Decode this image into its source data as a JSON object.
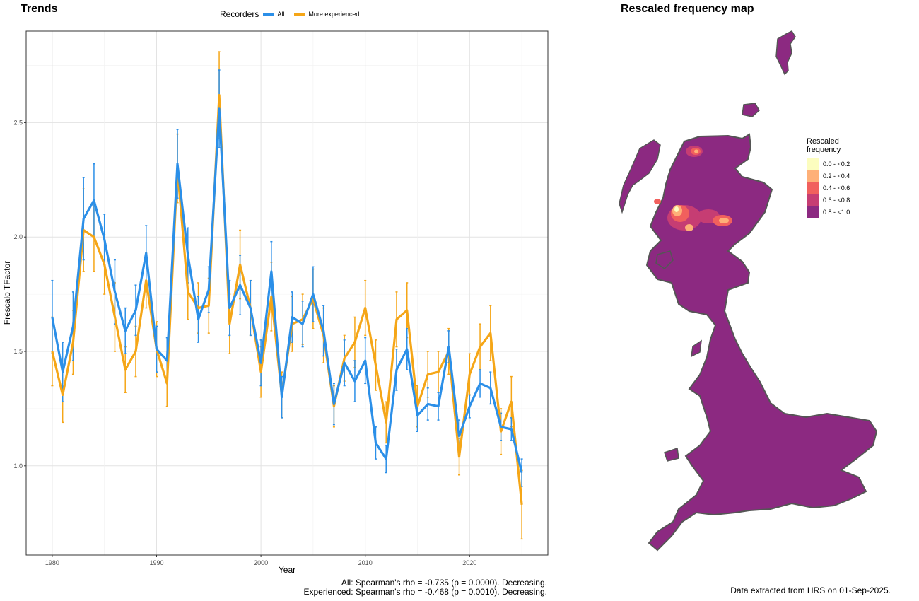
{
  "left_panel": {
    "title": "Trends",
    "legend_title": "Recorders",
    "footnote_lines": [
      "All: Spearman's rho = -0.735 (p = 0.0000). Decreasing.",
      "Experienced: Spearman's rho = -0.468 (p = 0.0010). Decreasing."
    ]
  },
  "right_panel": {
    "title": "Rescaled frequency map",
    "legend_title_lines": [
      "Rescaled",
      "frequency"
    ],
    "legend_items": [
      {
        "label": "0.0 - <0.2",
        "color": "#fcfdbf"
      },
      {
        "label": "0.2 - <0.4",
        "color": "#feb078"
      },
      {
        "label": "0.4 - <0.6",
        "color": "#f1605d"
      },
      {
        "label": "0.6 - <0.8",
        "color": "#c63d73"
      },
      {
        "label": "0.8 - <1.0",
        "color": "#8c2981"
      }
    ],
    "footnote": "Data extracted from HRS on 01-Sep-2025."
  },
  "chart_data": {
    "type": "line",
    "xlabel": "Year",
    "ylabel": "Frescalo TFactor",
    "xlim": [
      1977.5,
      2027.5
    ],
    "ylim": [
      0.61,
      2.9
    ],
    "xticks": [
      1980,
      1990,
      2000,
      2010,
      2020
    ],
    "yticks": [
      1.0,
      1.5,
      2.0,
      2.5
    ],
    "grid": true,
    "legend_position": "top",
    "x": [
      1980,
      1981,
      1982,
      1983,
      1984,
      1985,
      1986,
      1987,
      1988,
      1989,
      1990,
      1991,
      1992,
      1993,
      1994,
      1995,
      1996,
      1997,
      1998,
      1999,
      2000,
      2001,
      2002,
      2003,
      2004,
      2005,
      2006,
      2007,
      2008,
      2009,
      2010,
      2011,
      2012,
      2013,
      2014,
      2015,
      2016,
      2017,
      2018,
      2019,
      2020,
      2021,
      2022,
      2023,
      2024,
      2025
    ],
    "series": [
      {
        "name": "All",
        "color": "#2b8fe8",
        "values": [
          1.65,
          1.41,
          1.61,
          2.08,
          2.16,
          1.99,
          1.76,
          1.59,
          1.68,
          1.93,
          1.51,
          1.46,
          2.32,
          1.92,
          1.64,
          1.77,
          2.56,
          1.69,
          1.79,
          1.69,
          1.45,
          1.85,
          1.3,
          1.65,
          1.62,
          1.75,
          1.59,
          1.27,
          1.45,
          1.37,
          1.46,
          1.1,
          1.03,
          1.42,
          1.51,
          1.22,
          1.27,
          1.26,
          1.52,
          1.13,
          1.26,
          1.36,
          1.34,
          1.17,
          1.16,
          0.97
        ],
        "errors": [
          0.16,
          0.13,
          0.15,
          0.18,
          0.16,
          0.11,
          0.14,
          0.1,
          0.11,
          0.12,
          0.1,
          0.1,
          0.15,
          0.12,
          0.1,
          0.1,
          0.17,
          0.12,
          0.13,
          0.12,
          0.1,
          0.13,
          0.09,
          0.11,
          0.1,
          0.12,
          0.11,
          0.09,
          0.1,
          0.09,
          0.1,
          0.07,
          0.06,
          0.09,
          0.09,
          0.07,
          0.07,
          0.06,
          0.07,
          0.07,
          0.05,
          0.06,
          0.07,
          0.06,
          0.05,
          0.06
        ]
      },
      {
        "name": "More experienced",
        "color": "#f5a617",
        "values": [
          1.5,
          1.31,
          1.54,
          2.03,
          2.0,
          1.88,
          1.65,
          1.42,
          1.5,
          1.81,
          1.51,
          1.36,
          2.3,
          1.76,
          1.69,
          1.7,
          2.62,
          1.62,
          1.88,
          1.69,
          1.41,
          1.74,
          1.31,
          1.62,
          1.64,
          1.73,
          1.57,
          1.26,
          1.47,
          1.54,
          1.69,
          1.44,
          1.19,
          1.64,
          1.68,
          1.26,
          1.4,
          1.41,
          1.5,
          1.04,
          1.4,
          1.52,
          1.58,
          1.15,
          1.28,
          0.83
        ],
        "errors": [
          0.15,
          0.12,
          0.14,
          0.18,
          0.15,
          0.13,
          0.15,
          0.1,
          0.11,
          0.12,
          0.12,
          0.1,
          0.15,
          0.12,
          0.11,
          0.12,
          0.19,
          0.13,
          0.15,
          0.12,
          0.11,
          0.15,
          0.1,
          0.12,
          0.11,
          0.13,
          0.12,
          0.09,
          0.1,
          0.11,
          0.12,
          0.11,
          0.09,
          0.12,
          0.12,
          0.09,
          0.1,
          0.09,
          0.1,
          0.08,
          0.09,
          0.1,
          0.12,
          0.1,
          0.11,
          0.15
        ]
      }
    ]
  }
}
